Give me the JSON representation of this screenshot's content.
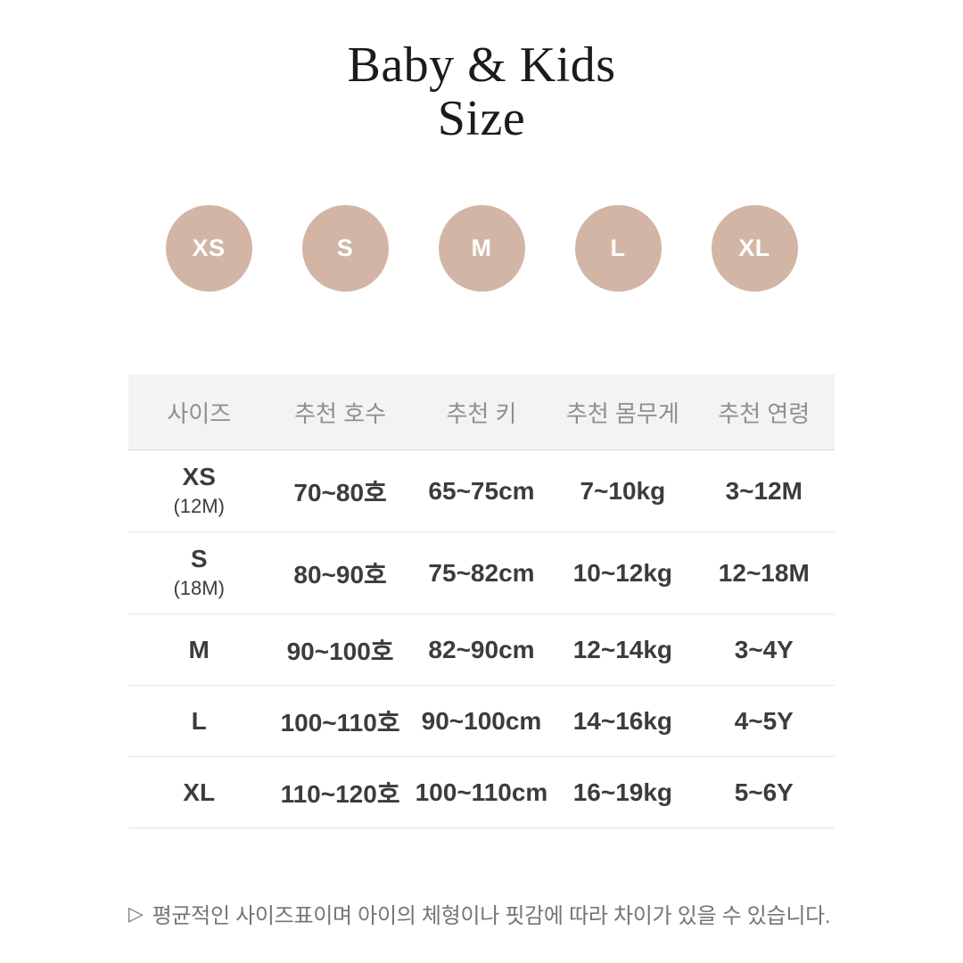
{
  "title": {
    "line1": "Baby & Kids",
    "line2": "Size"
  },
  "badges": {
    "labels": [
      "XS",
      "S",
      "M",
      "L",
      "XL"
    ],
    "circle_color": "#d3b5a5",
    "label_color": "#ffffff"
  },
  "chart_data": {
    "type": "table",
    "title": "Baby & Kids Size",
    "columns": [
      "사이즈",
      "추천 호수",
      "추천 키",
      "추천 몸무게",
      "추천 연령"
    ],
    "rows": [
      {
        "size": "XS",
        "size_sub": "(12M)",
        "hosu": "70~80호",
        "height": "65~75cm",
        "weight": "7~10kg",
        "age": "3~12M"
      },
      {
        "size": "S",
        "size_sub": "(18M)",
        "hosu": "80~90호",
        "height": "75~82cm",
        "weight": "10~12kg",
        "age": "12~18M"
      },
      {
        "size": "M",
        "size_sub": "",
        "hosu": "90~100호",
        "height": "82~90cm",
        "weight": "12~14kg",
        "age": "3~4Y"
      },
      {
        "size": "L",
        "size_sub": "",
        "hosu": "100~110호",
        "height": "90~100cm",
        "weight": "14~16kg",
        "age": "4~5Y"
      },
      {
        "size": "XL",
        "size_sub": "",
        "hosu": "110~120호",
        "height": "100~110cm",
        "weight": "16~19kg",
        "age": "5~6Y"
      }
    ]
  },
  "footnote": {
    "icon": "▷",
    "text": "평균적인 사이즈표이며 아이의 체형이나 핏감에 따라 차이가 있을 수 있습니다."
  },
  "colors": {
    "background": "#ffffff",
    "title_text": "#1b1b1b",
    "badge_fill": "#d3b5a5",
    "header_bg": "#f3f3f3",
    "header_text": "#8f8f8f",
    "body_text": "#3c3c3c",
    "footnote_text": "#757575"
  }
}
